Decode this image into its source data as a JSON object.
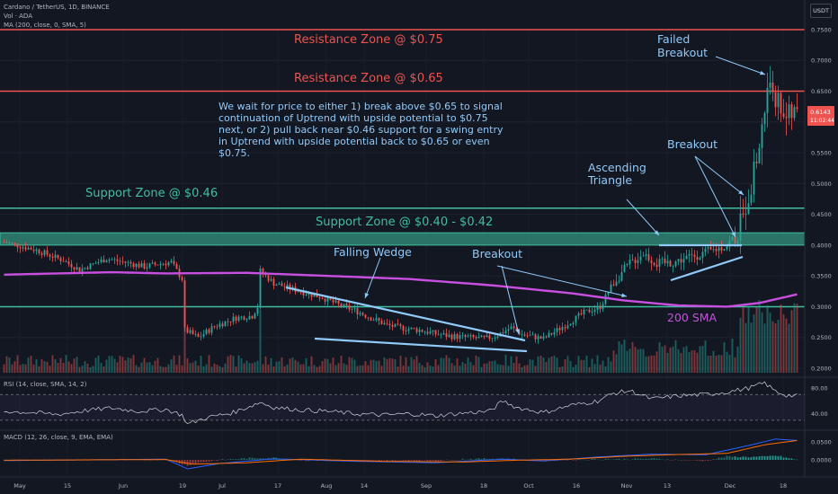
{
  "header": {
    "title": "Cardano / TetherUS, 1D, BINANCE",
    "volume": "Vol · ADA",
    "ma": "MA (200, close, 0, SMA, 5)",
    "rsi": "RSI (14, close, SMA, 14, 2)",
    "macd": "MACD (12, 26, close, 9, EMA, EMA)"
  },
  "currency_badge": "USDT",
  "note": "We wait for price to either 1) break above $0.65 to signal continuation of Uptrend with upside potential to $0.75 next, or 2) pull back near $0.46 support for a swing entry in Uptrend with upside potential back to $0.65 or even $0.75.",
  "colors": {
    "background": "#131722",
    "up": "#26a69a",
    "down": "#ef5350",
    "sma": "#c94fe0",
    "annotation": "#90caf9",
    "resistance": "#ef5350",
    "support": "#3fbf9f"
  },
  "chart_data": {
    "type": "candlestick",
    "symbol": "Cardano / TetherUS",
    "interval": "1D",
    "exchange": "BINANCE",
    "last_price": "0.6143",
    "countdown": "11:02:44",
    "ylim": [
      0.2,
      0.75
    ],
    "x_ticks": [
      "May",
      "15",
      "Jun",
      "19",
      "Jul",
      "17",
      "Aug",
      "14",
      "Sep",
      "18",
      "Oct",
      "16",
      "Nov",
      "13",
      "Dec",
      "18"
    ],
    "price_ticks": [
      "0.7500",
      "0.7000",
      "0.6500",
      "0.6000",
      "0.5500",
      "0.5000",
      "0.4500",
      "0.4000",
      "0.3500",
      "0.3000",
      "0.2500",
      "0.2000"
    ],
    "rsi_ticks": [
      "80.00",
      "40.00"
    ],
    "macd_ticks": [
      "0.0500",
      "0.0000"
    ],
    "close_path": [
      [
        0,
        0.405
      ],
      [
        12,
        0.392
      ],
      [
        22,
        0.375
      ],
      [
        28,
        0.36
      ],
      [
        38,
        0.378
      ],
      [
        45,
        0.372
      ],
      [
        52,
        0.365
      ],
      [
        58,
        0.37
      ],
      [
        62,
        0.372
      ],
      [
        66,
        0.345
      ],
      [
        67,
        0.262
      ],
      [
        72,
        0.25
      ],
      [
        78,
        0.268
      ],
      [
        86,
        0.282
      ],
      [
        92,
        0.285
      ],
      [
        94,
        0.3
      ],
      [
        95,
        0.358
      ],
      [
        100,
        0.338
      ],
      [
        106,
        0.33
      ],
      [
        112,
        0.322
      ],
      [
        118,
        0.315
      ],
      [
        124,
        0.303
      ],
      [
        130,
        0.294
      ],
      [
        136,
        0.282
      ],
      [
        142,
        0.27
      ],
      [
        148,
        0.265
      ],
      [
        154,
        0.262
      ],
      [
        160,
        0.256
      ],
      [
        166,
        0.252
      ],
      [
        172,
        0.25
      ],
      [
        178,
        0.248
      ],
      [
        182,
        0.252
      ],
      [
        188,
        0.266
      ],
      [
        192,
        0.255
      ],
      [
        200,
        0.248
      ],
      [
        208,
        0.27
      ],
      [
        215,
        0.29
      ],
      [
        221,
        0.3
      ],
      [
        226,
        0.34
      ],
      [
        232,
        0.37
      ],
      [
        237,
        0.387
      ],
      [
        242,
        0.37
      ],
      [
        248,
        0.372
      ],
      [
        255,
        0.382
      ],
      [
        262,
        0.39
      ],
      [
        268,
        0.4
      ],
      [
        272,
        0.42
      ],
      [
        276,
        0.48
      ],
      [
        280,
        0.56
      ],
      [
        282,
        0.62
      ],
      [
        284,
        0.67
      ],
      [
        286,
        0.64
      ],
      [
        290,
        0.61
      ],
      [
        294,
        0.614
      ]
    ],
    "series": [
      {
        "name": "MA (200, close, 0, SMA, 5)",
        "type": "line",
        "points": [
          [
            0,
            0.352
          ],
          [
            40,
            0.356
          ],
          [
            60,
            0.354
          ],
          [
            90,
            0.355
          ],
          [
            120,
            0.35
          ],
          [
            150,
            0.345
          ],
          [
            180,
            0.335
          ],
          [
            210,
            0.322
          ],
          [
            230,
            0.31
          ],
          [
            250,
            0.302
          ],
          [
            268,
            0.3
          ],
          [
            280,
            0.306
          ],
          [
            294,
            0.32
          ]
        ]
      }
    ],
    "horizontal_levels": [
      {
        "label": "Resistance Zone @ $0.75",
        "value": 0.75,
        "kind": "resistance"
      },
      {
        "label": "Resistance Zone @ $0.65",
        "value": 0.65,
        "kind": "resistance"
      },
      {
        "label": "Support Zone @ $0.46",
        "value": 0.46,
        "kind": "support"
      },
      {
        "label": "Support Zone @ $0.40 - $0.42",
        "value_low": 0.4,
        "value_high": 0.42,
        "kind": "support-zone"
      },
      {
        "label": "",
        "value": 0.3,
        "kind": "support"
      }
    ],
    "annotations": [
      {
        "label": "Falling Wedge"
      },
      {
        "label": "Breakout"
      },
      {
        "label": "Ascending Triangle"
      },
      {
        "label": "Breakout"
      },
      {
        "label": "Failed Breakout"
      },
      {
        "label": "200 SMA"
      }
    ],
    "rsi_range": [
      20,
      90
    ],
    "rsi_levels": [
      70,
      30
    ],
    "rsi_path": [
      [
        0,
        44
      ],
      [
        10,
        42
      ],
      [
        20,
        39
      ],
      [
        30,
        45
      ],
      [
        40,
        49
      ],
      [
        50,
        44
      ],
      [
        60,
        47
      ],
      [
        66,
        38
      ],
      [
        68,
        24
      ],
      [
        75,
        34
      ],
      [
        85,
        42
      ],
      [
        95,
        58
      ],
      [
        100,
        50
      ],
      [
        110,
        46
      ],
      [
        120,
        44
      ],
      [
        130,
        40
      ],
      [
        140,
        38
      ],
      [
        150,
        40
      ],
      [
        160,
        37
      ],
      [
        170,
        41
      ],
      [
        180,
        44
      ],
      [
        185,
        60
      ],
      [
        190,
        50
      ],
      [
        200,
        42
      ],
      [
        210,
        53
      ],
      [
        220,
        60
      ],
      [
        226,
        72
      ],
      [
        232,
        76
      ],
      [
        240,
        63
      ],
      [
        250,
        68
      ],
      [
        260,
        70
      ],
      [
        268,
        74
      ],
      [
        276,
        80
      ],
      [
        282,
        88
      ],
      [
        286,
        75
      ],
      [
        290,
        69
      ],
      [
        294,
        68
      ]
    ],
    "macd_range": [
      -0.04,
      0.07
    ],
    "macd_line": [
      [
        0,
        -0.002
      ],
      [
        30,
        0.0
      ],
      [
        60,
        0.002
      ],
      [
        68,
        -0.025
      ],
      [
        80,
        -0.01
      ],
      [
        100,
        0.003
      ],
      [
        130,
        -0.004
      ],
      [
        160,
        -0.008
      ],
      [
        185,
        0.002
      ],
      [
        200,
        -0.003
      ],
      [
        220,
        0.008
      ],
      [
        240,
        0.016
      ],
      [
        260,
        0.014
      ],
      [
        276,
        0.04
      ],
      [
        286,
        0.058
      ],
      [
        294,
        0.054
      ]
    ],
    "signal_line": [
      [
        0,
        -0.001
      ],
      [
        30,
        0.0
      ],
      [
        60,
        0.001
      ],
      [
        70,
        -0.012
      ],
      [
        90,
        -0.008
      ],
      [
        110,
        0.002
      ],
      [
        140,
        -0.004
      ],
      [
        170,
        -0.006
      ],
      [
        190,
        -0.001
      ],
      [
        210,
        0.002
      ],
      [
        230,
        0.01
      ],
      [
        250,
        0.015
      ],
      [
        268,
        0.018
      ],
      [
        282,
        0.042
      ],
      [
        294,
        0.054
      ]
    ]
  }
}
